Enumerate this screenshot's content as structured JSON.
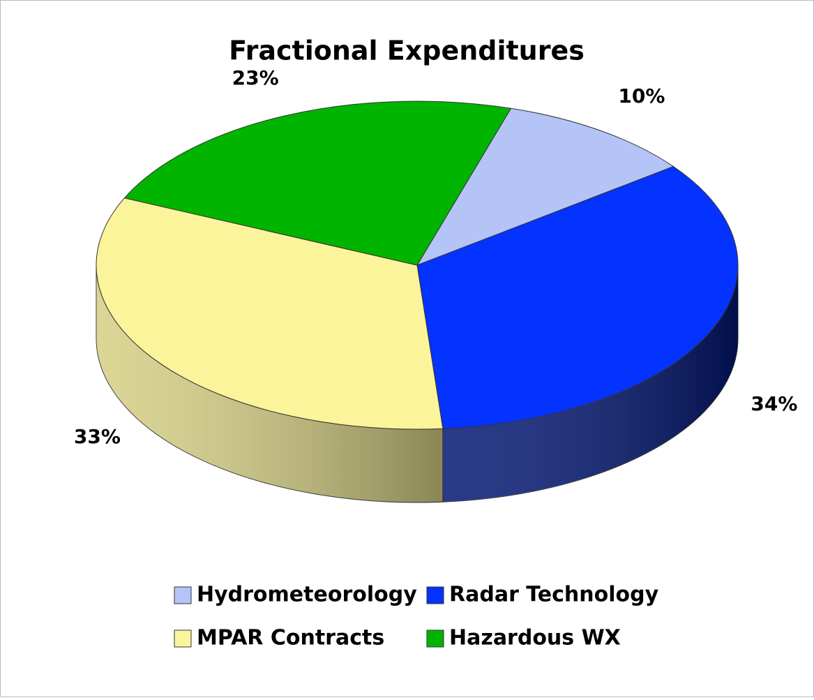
{
  "chart_data": {
    "type": "pie3d",
    "title": "Fractional Expenditures",
    "categories": [
      "Hydrometeorology",
      "Radar Technology",
      "MPAR Contracts",
      "Hazardous WX"
    ],
    "values": [
      10,
      34,
      33,
      23
    ],
    "value_labels": [
      "10%",
      "34%",
      "33%",
      "23%"
    ],
    "colors": [
      "#b4c4f6",
      "#0433ff",
      "#fbf49a",
      "#00b400"
    ]
  }
}
